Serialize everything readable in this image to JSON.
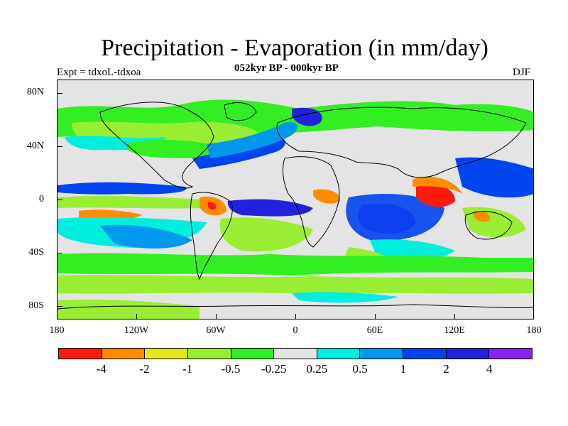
{
  "title": "Precipitation - Evaporation (in mm/day)",
  "subtitle": "052kyr BP - 000kyr BP",
  "experiment": "Expt = tdxoL-tdxoa",
  "season": "DJF",
  "lat_labels": [
    "80N",
    "40N",
    "0",
    "40S",
    "80S"
  ],
  "lon_labels": [
    "180",
    "120W",
    "60W",
    "0",
    "60E",
    "120E",
    "180"
  ],
  "colorbar": {
    "colors": [
      "#ff1a10",
      "#ff8c00",
      "#e6e61a",
      "#99ee33",
      "#33ee22",
      "#e4e4e4",
      "#00eedd",
      "#0099ee",
      "#0044ee",
      "#2222dd",
      "#8822ee"
    ],
    "labels": [
      "-4",
      "-2",
      "-1",
      "-0.5",
      "-0.25",
      "0.25",
      "0.5",
      "1",
      "2",
      "4"
    ]
  },
  "colors": {
    "land_outline": "#000000",
    "background": "#e4e4e4"
  }
}
